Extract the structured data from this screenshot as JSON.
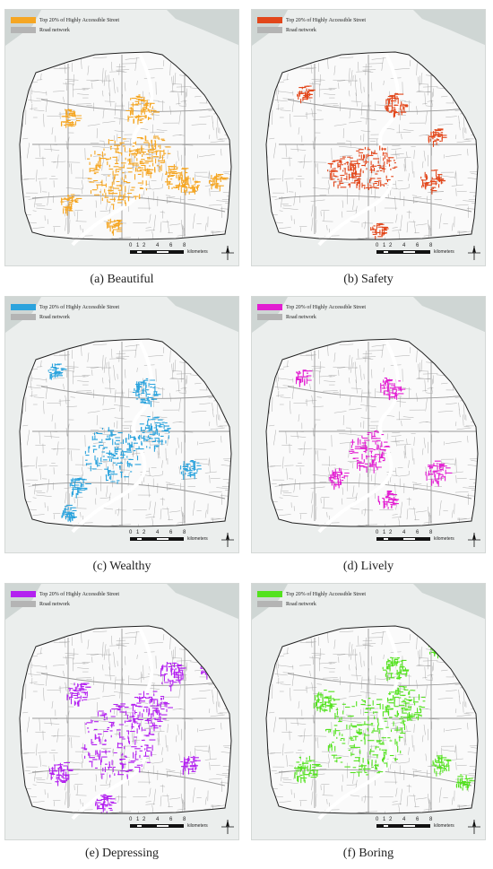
{
  "figure": {
    "legend": {
      "highlight_label": "Top 20% of Highly Accessible Street",
      "network_label": "Road network",
      "network_color": "#b4b4b4"
    },
    "scale_bar": {
      "ticks": [
        "0",
        "1",
        "2",
        "4",
        "6",
        "8"
      ],
      "unit": "kilometers"
    },
    "colors": {
      "background": "#ebeeed",
      "water": "#cfd6d4",
      "road": "#9a9a9a",
      "boundary": "#222222"
    },
    "panels": [
      {
        "id": "a",
        "caption": "(a) Beautiful",
        "color": "#f5a623"
      },
      {
        "id": "b",
        "caption": "(b) Safety",
        "color": "#e2461a"
      },
      {
        "id": "c",
        "caption": "(c) Wealthy",
        "color": "#2ba3dd"
      },
      {
        "id": "d",
        "caption": "(d) Lively",
        "color": "#e21ed1"
      },
      {
        "id": "e",
        "caption": "(e) Depressing",
        "color": "#b321f0"
      },
      {
        "id": "f",
        "caption": "(f) Boring",
        "color": "#53e21e"
      }
    ]
  }
}
